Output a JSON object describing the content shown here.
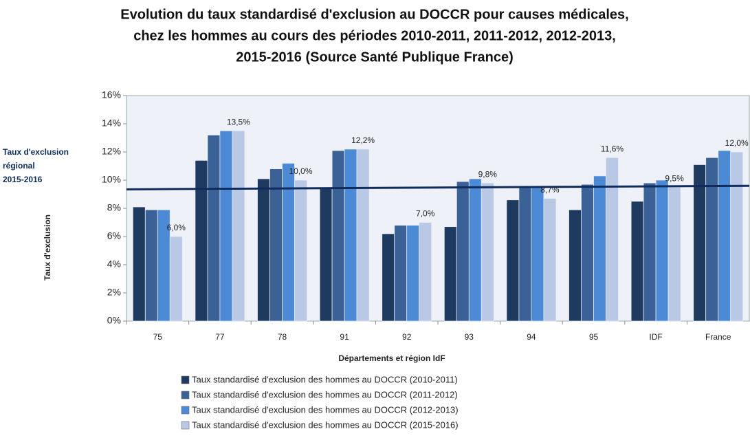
{
  "chart_data": {
    "type": "bar",
    "title": [
      "Evolution du taux standardisé d'exclusion au DOCCR pour causes médicales,",
      "chez les hommes au cours des périodes 2010-2011, 2011-2012, 2012-2013,",
      "2015-2016 (Source Santé Publique France)"
    ],
    "x_label": "Départements et région IdF",
    "y_label": "Taux d'exclusion",
    "categories": [
      "75",
      "77",
      "78",
      "91",
      "92",
      "93",
      "94",
      "95",
      "IDF",
      "France"
    ],
    "series": [
      {
        "name": "Taux standardisé d'exclusion des hommes au DOCCR (2010-2011)",
        "color": "#1f3a5f",
        "values": [
          8.1,
          11.4,
          10.1,
          9.5,
          6.2,
          6.7,
          8.6,
          7.9,
          8.5,
          11.1
        ]
      },
      {
        "name": "Taux standardisé d'exclusion des hommes au DOCCR (2011-2012)",
        "color": "#3a6296",
        "values": [
          7.9,
          13.2,
          10.8,
          12.1,
          6.8,
          9.9,
          9.5,
          9.7,
          9.8,
          11.6
        ]
      },
      {
        "name": "Taux standardisé d'exclusion des hommes au DOCCR (2012-2013)",
        "color": "#4d8ad6",
        "values": [
          7.9,
          13.5,
          11.2,
          12.2,
          6.8,
          10.1,
          9.5,
          10.3,
          10.0,
          12.1
        ]
      },
      {
        "name": "Taux standardisé d'exclusion des hommes au DOCCR (2015-2016)",
        "color": "#b9c9e5",
        "values": [
          6.0,
          13.5,
          10.0,
          12.2,
          7.0,
          9.8,
          8.7,
          11.6,
          9.5,
          12.0
        ],
        "value_labels": [
          "6,0%",
          "13,5%",
          "10,0%",
          "12,2%",
          "7,0%",
          "9,8%",
          "8,7%",
          "11,6%",
          "9,5%",
          "12,0%"
        ]
      }
    ],
    "regional_line": {
      "label": [
        "Taux d'exclusion",
        "régional",
        "2015-2016"
      ],
      "color": "#0f2c5c",
      "values": [
        9.35,
        9.6
      ]
    },
    "ylim": [
      0,
      16
    ],
    "yticks": [
      {
        "value": 0,
        "label": "0%"
      },
      {
        "value": 2,
        "label": "2%"
      },
      {
        "value": 4,
        "label": "4%"
      },
      {
        "value": 6,
        "label": "6%"
      },
      {
        "value": 8,
        "label": "8%"
      },
      {
        "value": 10,
        "label": "10%"
      },
      {
        "value": 12,
        "label": "12%"
      },
      {
        "value": 14,
        "label": "14%"
      },
      {
        "value": 16,
        "label": "16%"
      }
    ]
  }
}
